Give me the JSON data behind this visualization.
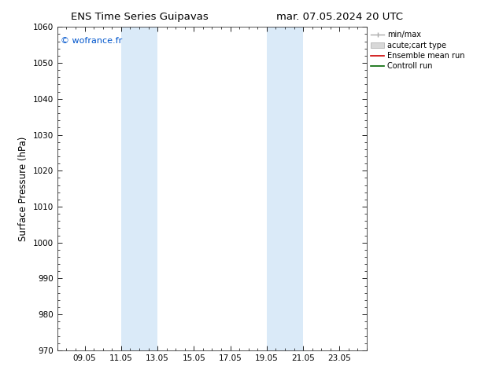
{
  "title_left": "ENS Time Series Guipavas",
  "title_right": "mar. 07.05.2024 20 UTC",
  "ylabel": "Surface Pressure (hPa)",
  "ylim": [
    970,
    1060
  ],
  "yticks": [
    970,
    980,
    990,
    1000,
    1010,
    1020,
    1030,
    1040,
    1050,
    1060
  ],
  "xtick_labels": [
    "09.05",
    "11.05",
    "13.05",
    "15.05",
    "17.05",
    "19.05",
    "21.05",
    "23.05"
  ],
  "xtick_days": [
    9,
    11,
    13,
    15,
    17,
    19,
    21,
    23
  ],
  "xlim": [
    7.5,
    24.5
  ],
  "shade_bands": [
    {
      "start": 11,
      "end": 13,
      "color": "#daeaf8"
    },
    {
      "start": 19,
      "end": 20,
      "color": "#daeaf8"
    },
    {
      "start": 20,
      "end": 21,
      "color": "#daeaf8"
    }
  ],
  "watermark": "© wofrance.fr",
  "watermark_color": "#0055cc",
  "legend_labels": [
    "min/max",
    "acute;cart type",
    "Ensemble mean run",
    "Controll run"
  ],
  "bg_color": "#ffffff",
  "title_fontsize": 9.5,
  "label_fontsize": 8.5,
  "tick_fontsize": 7.5
}
